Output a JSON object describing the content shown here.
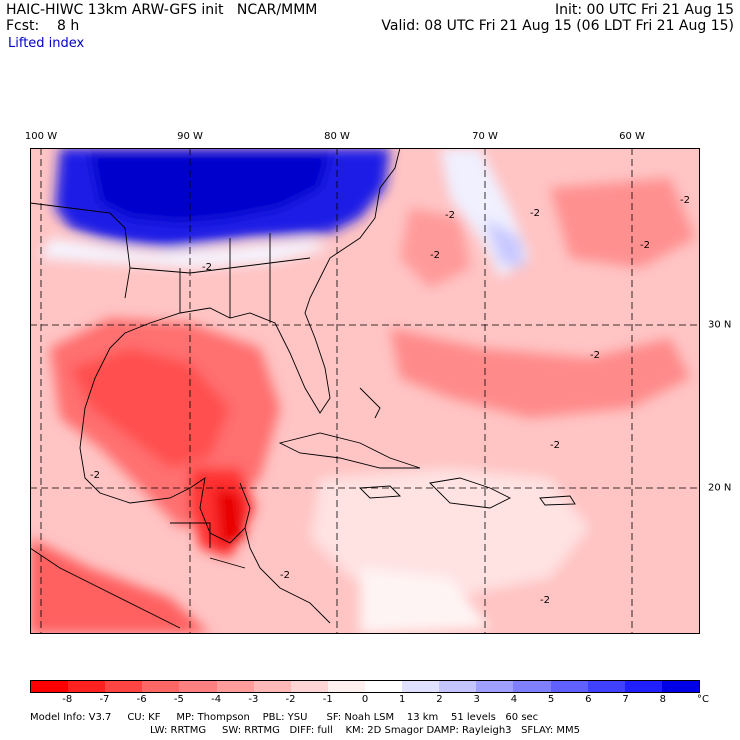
{
  "header": {
    "title": "HAIC-HIWC 13km ARW-GFS init   NCAR/MMM",
    "forecast": "Fcst:    8 h",
    "init": "Init: 00 UTC Fri 21 Aug 15",
    "valid": "Valid: 08 UTC Fri 21 Aug 15 (06 LDT Fri 21 Aug 15)",
    "field": "Lifted index"
  },
  "map": {
    "longitude_labels": [
      "100 W",
      "90 W",
      "80 W",
      "70 W",
      "60 W"
    ],
    "latitude_labels": [
      "30 N",
      "20 N"
    ],
    "contour_labels": [
      "-2",
      "-2",
      "-2",
      "-2",
      "-2",
      "-2",
      "-2",
      "-2",
      "-2",
      "-2",
      "-2"
    ]
  },
  "colorbar": {
    "labels": [
      "-8",
      "-7",
      "-6",
      "-5",
      "-4",
      "-3",
      "-2",
      "-1",
      "0",
      "1",
      "2",
      "3",
      "4",
      "5",
      "6",
      "7",
      "8"
    ],
    "unit": "°C",
    "colors": [
      "#ff0000",
      "#ff2020",
      "#ff4444",
      "#ff6666",
      "#ff8080",
      "#ff9c9c",
      "#ffb8b8",
      "#ffd4d4",
      "#fff0f0",
      "#ffffff",
      "#e0e0ff",
      "#c4c4ff",
      "#a0a0ff",
      "#8080ff",
      "#6060ff",
      "#4040ff",
      "#2020ff",
      "#0000e6"
    ]
  },
  "footer": {
    "line1": "Model Info: V3.7     CU: KF     MP: Thompson    PBL: YSU      SF: Noah LSM    13 km    51 levels   60 sec",
    "line2": "LW: RRTMG     SW: RRTMG   DIFF: full    KM: 2D Smagor DAMP: Rayleigh3   SFLAY: MM5"
  }
}
